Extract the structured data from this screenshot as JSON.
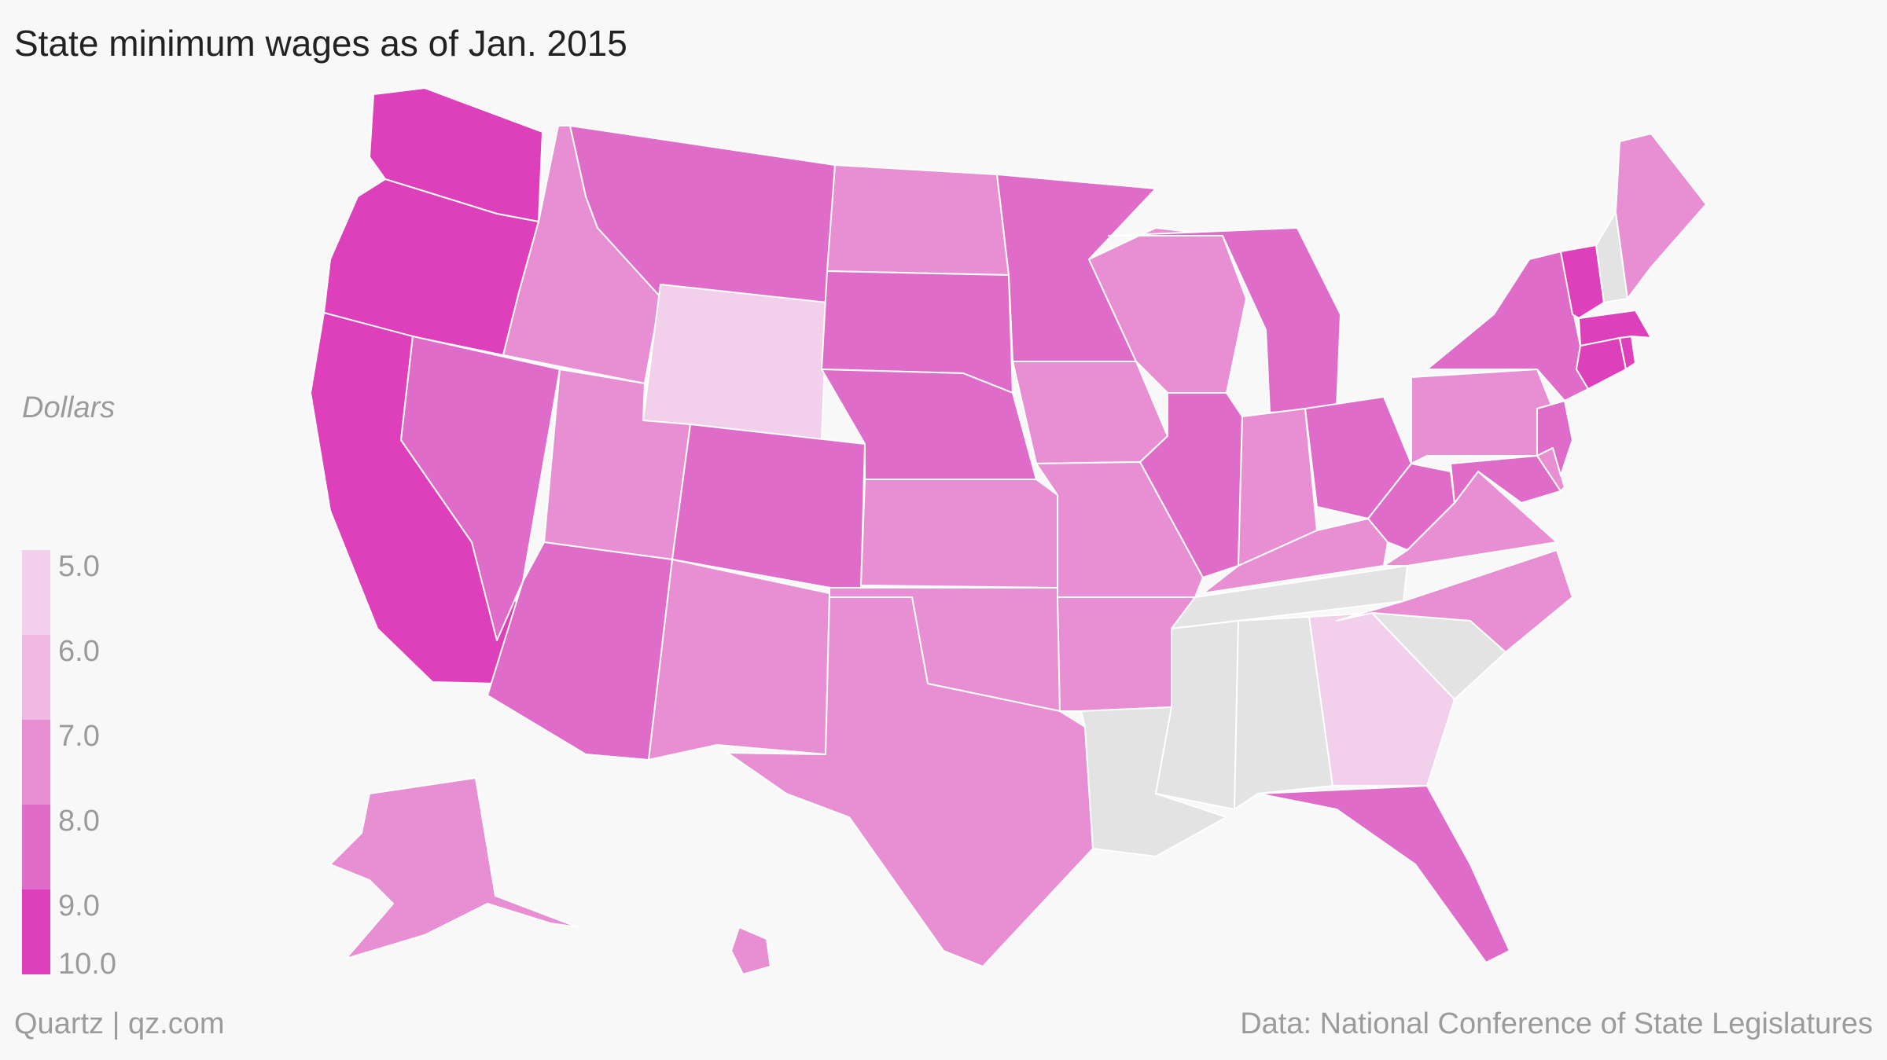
{
  "title": "State minimum wages as of Jan. 2015",
  "unit_label": "Dollars",
  "legend": {
    "ticks": [
      "5.0",
      "6.0",
      "7.0",
      "8.0",
      "9.0",
      "10.0"
    ],
    "scale": [
      "#f2cfea",
      "#efb9e3",
      "#e88ed3",
      "#e06cca",
      "#de3fba",
      "#dd33b8"
    ]
  },
  "no_data_color": "#e3e3e3",
  "footer": {
    "left": "Quartz | qz.com",
    "right": "Data: National Conference of State Legislatures"
  },
  "map_data": {
    "type": "choropleth",
    "unit": "Dollars",
    "states": [
      {
        "id": "WA",
        "value": 9.5
      },
      {
        "id": "OR",
        "value": 9.5
      },
      {
        "id": "CA",
        "value": 9.0
      },
      {
        "id": "NV",
        "value": 8.25
      },
      {
        "id": "ID",
        "value": 7.25
      },
      {
        "id": "MT",
        "value": 8.05
      },
      {
        "id": "WY",
        "value": 5.15
      },
      {
        "id": "UT",
        "value": 7.25
      },
      {
        "id": "AZ",
        "value": 8.05
      },
      {
        "id": "CO",
        "value": 8.23
      },
      {
        "id": "NM",
        "value": 7.5
      },
      {
        "id": "ND",
        "value": 7.25
      },
      {
        "id": "SD",
        "value": 8.5
      },
      {
        "id": "NE",
        "value": 8.0
      },
      {
        "id": "KS",
        "value": 7.25
      },
      {
        "id": "OK",
        "value": 7.25
      },
      {
        "id": "TX",
        "value": 7.25
      },
      {
        "id": "MN",
        "value": 8.0
      },
      {
        "id": "IA",
        "value": 7.25
      },
      {
        "id": "MO",
        "value": 7.65
      },
      {
        "id": "AR",
        "value": 7.5
      },
      {
        "id": "LA",
        "value": null
      },
      {
        "id": "WI",
        "value": 7.25
      },
      {
        "id": "IL",
        "value": 8.25
      },
      {
        "id": "MI",
        "value": 8.15
      },
      {
        "id": "IN",
        "value": 7.25
      },
      {
        "id": "OH",
        "value": 8.1
      },
      {
        "id": "KY",
        "value": 7.25
      },
      {
        "id": "TN",
        "value": null
      },
      {
        "id": "MS",
        "value": null
      },
      {
        "id": "AL",
        "value": null
      },
      {
        "id": "GA",
        "value": 5.15
      },
      {
        "id": "FL",
        "value": 8.05
      },
      {
        "id": "SC",
        "value": null
      },
      {
        "id": "NC",
        "value": 7.25
      },
      {
        "id": "VA",
        "value": 7.25
      },
      {
        "id": "WV",
        "value": 8.0
      },
      {
        "id": "PA",
        "value": 7.25
      },
      {
        "id": "NY",
        "value": 8.75
      },
      {
        "id": "NJ",
        "value": 8.38
      },
      {
        "id": "DE",
        "value": 7.75
      },
      {
        "id": "MD",
        "value": 8.25
      },
      {
        "id": "VT",
        "value": 9.15
      },
      {
        "id": "NH",
        "value": null
      },
      {
        "id": "ME",
        "value": 7.5
      },
      {
        "id": "MA",
        "value": 9.0
      },
      {
        "id": "CT",
        "value": 9.15
      },
      {
        "id": "RI",
        "value": 9.0
      },
      {
        "id": "AK",
        "value": 7.75
      },
      {
        "id": "HI",
        "value": 7.75
      }
    ]
  }
}
